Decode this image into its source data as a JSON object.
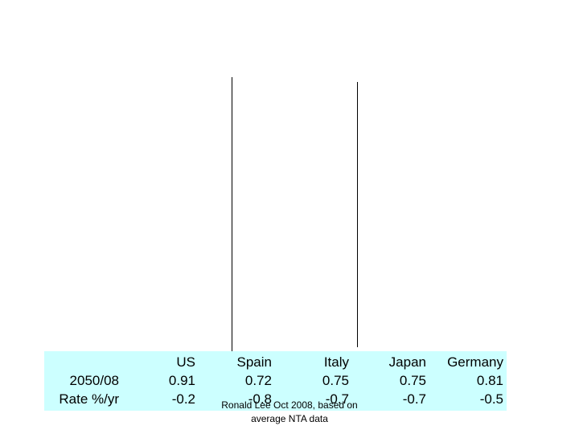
{
  "table": {
    "header": [
      "US",
      "Spain",
      "Italy",
      "Japan",
      "Germany"
    ],
    "rows": [
      [
        "2050/08",
        "0.91",
        "0.72",
        "0.75",
        "0.75",
        "0.81"
      ],
      [
        "Rate %/yr",
        "-0.2",
        "-0.8",
        "-0.7",
        "-0.7",
        "-0.5"
      ]
    ]
  },
  "footnote": [
    "Ronald Lee Oct 2008, based on",
    "average NTA data"
  ]
}
